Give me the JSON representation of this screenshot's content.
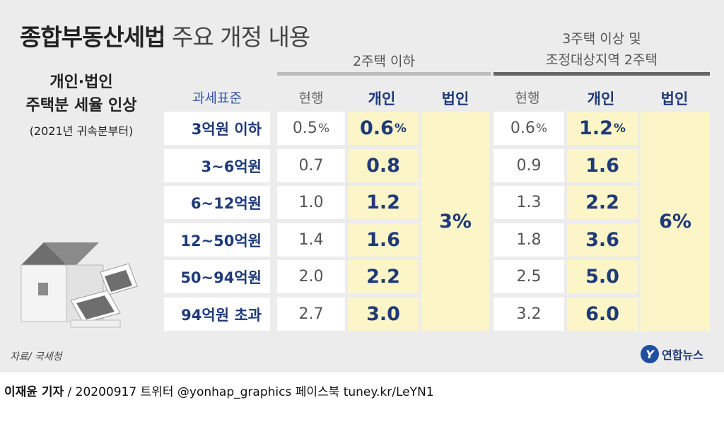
{
  "title": {
    "bold": "종합부동산세법",
    "normal": "주요 개정 내용"
  },
  "side_note": {
    "line1": "개인·법인",
    "line2": "주택분 세율 인상",
    "line3": "(2021년 귀속분부터)"
  },
  "groups": {
    "group1": "2주택 이하",
    "group2_line1": "3주택 이상 및",
    "group2_line2": "조정대상지역 2주택"
  },
  "headers": {
    "standard": "과세표준",
    "current": "현행",
    "individual": "개인",
    "corporate": "법인"
  },
  "source": "자료/ 국세청",
  "logo": {
    "mark": "Y",
    "text": "연합뉴스"
  },
  "footer": {
    "reporter": "이재윤 기자",
    "rest": " / 20200917   트위터 @yonhap_graphics  페이스북 tuney.kr/LeYN1"
  },
  "colors": {
    "accent": "#1f3a78",
    "highlight": "#fbf5c8",
    "panel": "#ececec",
    "rule_light": "#bdbdbd",
    "rule_dark": "#666666"
  },
  "chart_data": {
    "type": "table",
    "title": "종합부동산세법 주요 개정 내용",
    "columns": [
      "과세표준",
      "2주택 이하 현행",
      "2주택 이하 개인",
      "2주택 이하 법인",
      "3주택 이상 및 조정대상지역 2주택 현행",
      "3주택 이상 및 조정대상지역 2주택 개인",
      "3주택 이상 및 조정대상지역 2주택 법인"
    ],
    "corporate": {
      "group1": "3%",
      "group2": "6%"
    },
    "rows": [
      {
        "bracket": "3억원 이하",
        "g1_current": "0.5",
        "g1_individual": "0.6",
        "g2_current": "0.6",
        "g2_individual": "1.2",
        "suffix": "%"
      },
      {
        "bracket": "3~6억원",
        "g1_current": "0.7",
        "g1_individual": "0.8",
        "g2_current": "0.9",
        "g2_individual": "1.6",
        "suffix": ""
      },
      {
        "bracket": "6~12억원",
        "g1_current": "1.0",
        "g1_individual": "1.2",
        "g2_current": "1.3",
        "g2_individual": "2.2",
        "suffix": ""
      },
      {
        "bracket": "12~50억원",
        "g1_current": "1.4",
        "g1_individual": "1.6",
        "g2_current": "1.8",
        "g2_individual": "3.6",
        "suffix": ""
      },
      {
        "bracket": "50~94억원",
        "g1_current": "2.0",
        "g1_individual": "2.2",
        "g2_current": "2.5",
        "g2_individual": "5.0",
        "suffix": ""
      },
      {
        "bracket": "94억원 초과",
        "g1_current": "2.7",
        "g1_individual": "3.0",
        "g2_current": "3.2",
        "g2_individual": "6.0",
        "suffix": ""
      }
    ]
  }
}
